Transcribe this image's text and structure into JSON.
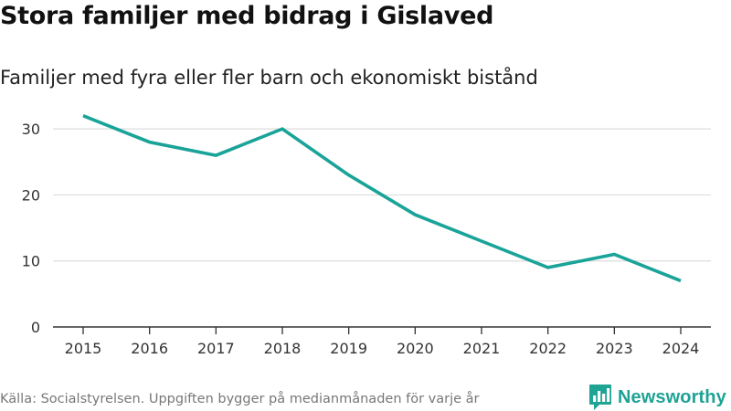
{
  "header": {
    "title": "Stora familjer med bidrag i Gislaved",
    "subtitle": "Familjer med fyra eller fler barn och ekonomiskt bistånd"
  },
  "footer": {
    "source": "Källa: Socialstyrelsen. Uppgiften bygger på medianmånaden för varje år",
    "brand": "Newsworthy",
    "brand_icon": "bar-chart-speech-bubble-icon"
  },
  "colors": {
    "line": "#1aa398",
    "grid": "#dddddd",
    "axis": "#333333",
    "brand": "#1ea394"
  },
  "chart_data": {
    "type": "line",
    "title": "Stora familjer med bidrag i Gislaved",
    "subtitle": "Familjer med fyra eller fler barn och ekonomiskt bistånd",
    "xlabel": "",
    "ylabel": "",
    "categories": [
      "2015",
      "2016",
      "2017",
      "2018",
      "2019",
      "2020",
      "2021",
      "2022",
      "2023",
      "2024"
    ],
    "series": [
      {
        "name": "Familjer",
        "values": [
          32,
          28,
          26,
          30,
          23,
          17,
          13,
          9,
          11,
          7
        ]
      }
    ],
    "yticks": [
      "0",
      "10",
      "20",
      "30"
    ],
    "ylim": [
      0,
      35
    ],
    "grid": true,
    "legend": "none"
  }
}
